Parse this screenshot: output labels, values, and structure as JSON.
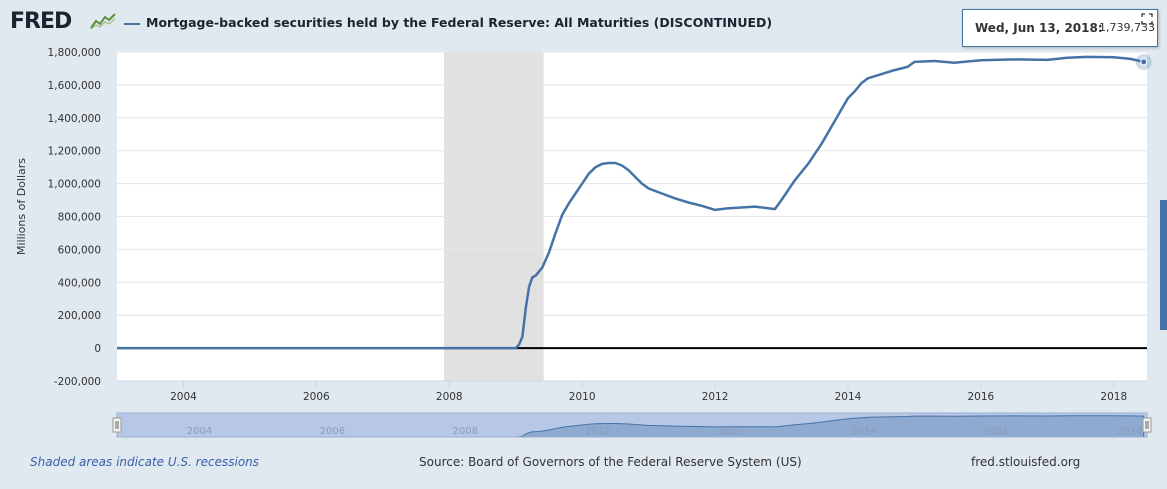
{
  "header": {
    "logo_text": "FRED",
    "logo_icon": "line-graph-icon",
    "legend_label": "Mortgage-backed securities held by the Federal Reserve: All Maturities (DISCONTINUED)",
    "series_color": "#4572a7"
  },
  "tooltip": {
    "date": "Wed, Jun 13, 2018:",
    "value": "1,739,733",
    "fullscreen_icon": "fullscreen-icon"
  },
  "footer": {
    "recession_note": "Shaded areas indicate U.S. recessions",
    "source": "Source: Board of Governors of the Federal Reserve System (US)",
    "site": "fred.stlouisfed.org"
  },
  "chart_data": {
    "type": "line",
    "ylabel": "Millions of Dollars",
    "xlabel": "",
    "title": "",
    "ylim": [
      -200000,
      1800000
    ],
    "xlim": [
      2003.0,
      2018.5
    ],
    "yticks": [
      -200000,
      0,
      200000,
      400000,
      600000,
      800000,
      1000000,
      1200000,
      1400000,
      1600000,
      1800000
    ],
    "ytick_labels": [
      "-200,000",
      "0",
      "200,000",
      "400,000",
      "600,000",
      "800,000",
      "1,000,000",
      "1,200,000",
      "1,400,000",
      "1,600,000",
      "1,800,000"
    ],
    "xticks": [
      2004,
      2006,
      2008,
      2010,
      2012,
      2014,
      2016,
      2018
    ],
    "xtick_labels": [
      "2004",
      "2006",
      "2008",
      "2010",
      "2012",
      "2014",
      "2016",
      "2018"
    ],
    "navigator_labels": [
      "2004",
      "2006",
      "2008",
      "2010",
      "2012",
      "2014",
      "2016",
      "2018"
    ],
    "recessions": [
      {
        "start": 2007.92,
        "end": 2009.42
      }
    ],
    "grid": true,
    "zero_line": true,
    "series": [
      {
        "values_x": [
          2003.0,
          2009.0,
          2009.05,
          2009.1,
          2009.15,
          2009.2,
          2009.25,
          2009.3,
          2009.4,
          2009.5,
          2009.6,
          2009.7,
          2009.8,
          2009.9,
          2010.0,
          2010.1,
          2010.2,
          2010.3,
          2010.4,
          2010.5,
          2010.6,
          2010.7,
          2010.8,
          2010.9,
          2011.0,
          2011.2,
          2011.4,
          2011.6,
          2011.8,
          2012.0,
          2012.2,
          2012.4,
          2012.6,
          2012.8,
          2012.9,
          2013.0,
          2013.2,
          2013.4,
          2013.6,
          2013.8,
          2013.9,
          2014.0,
          2014.1,
          2014.2,
          2014.3,
          2014.5,
          2014.7,
          2014.9,
          2015.0,
          2015.3,
          2015.6,
          2016.0,
          2016.5,
          2017.0,
          2017.3,
          2017.6,
          2018.0,
          2018.25,
          2018.45
        ],
        "values_y": [
          0,
          0,
          20000,
          70000,
          240000,
          370000,
          430000,
          440000,
          490000,
          580000,
          700000,
          810000,
          880000,
          940000,
          1000000,
          1060000,
          1100000,
          1120000,
          1125000,
          1125000,
          1110000,
          1080000,
          1040000,
          1000000,
          970000,
          940000,
          910000,
          885000,
          865000,
          840000,
          850000,
          855000,
          860000,
          850000,
          845000,
          900000,
          1020000,
          1120000,
          1240000,
          1380000,
          1450000,
          1520000,
          1560000,
          1610000,
          1640000,
          1665000,
          1690000,
          1710000,
          1740000,
          1745000,
          1735000,
          1750000,
          1755000,
          1752000,
          1765000,
          1770000,
          1768000,
          1758000,
          1739733
        ]
      }
    ]
  }
}
